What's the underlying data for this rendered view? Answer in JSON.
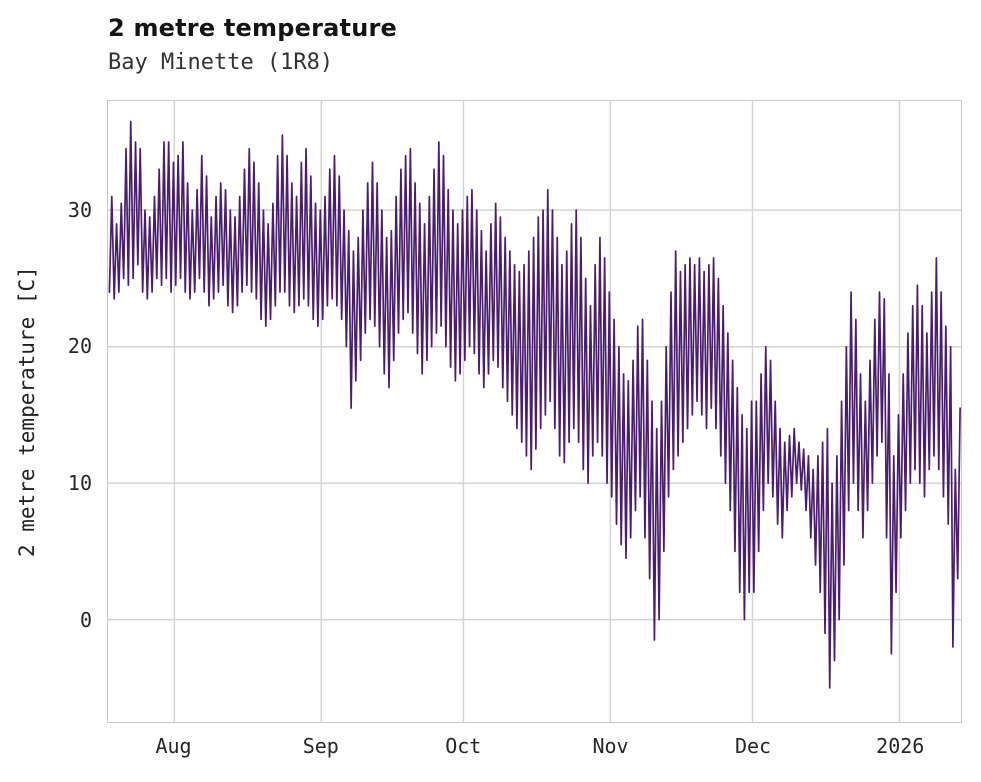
{
  "header": {
    "title": "2 metre temperature",
    "subtitle": "Bay Minette (1R8)"
  },
  "colors": {
    "line": "#4a1d6e",
    "grid": "#d4d4d4",
    "border": "#c9c9c9",
    "title_text": "#141414",
    "tick_text": "#262626"
  },
  "chart_data": {
    "type": "line",
    "title": "2 metre temperature",
    "subtitle": "Bay Minette (1R8)",
    "xlabel": "",
    "ylabel": "2 metre temperature [C]",
    "ylim": [
      -7.5,
      38
    ],
    "grid": true,
    "legend_position": "none",
    "x_domain_days": 180,
    "y_ticks": [
      0,
      10,
      20,
      30
    ],
    "x_ticks": [
      {
        "label": "Aug",
        "day": 14
      },
      {
        "label": "Sep",
        "day": 45
      },
      {
        "label": "Oct",
        "day": 75
      },
      {
        "label": "Nov",
        "day": 106
      },
      {
        "label": "Dec",
        "day": 136
      },
      {
        "label": "2026",
        "day": 167
      }
    ],
    "series": [
      {
        "name": "2 metre temperature",
        "color": "#4a1d6e",
        "encoding": "daily_min_max_estimated_from_plot",
        "daily_min_max": [
          [
            24,
            31
          ],
          [
            23.5,
            29
          ],
          [
            24,
            30.5
          ],
          [
            25,
            34.5
          ],
          [
            24.5,
            36.5
          ],
          [
            25,
            35
          ],
          [
            26,
            34.5
          ],
          [
            24,
            30
          ],
          [
            23.5,
            29.5
          ],
          [
            24,
            31
          ],
          [
            25,
            33
          ],
          [
            24.5,
            35
          ],
          [
            25,
            35
          ],
          [
            24,
            33.5
          ],
          [
            24.5,
            34
          ],
          [
            25,
            35
          ],
          [
            24,
            32
          ],
          [
            23.5,
            30
          ],
          [
            24,
            31.5
          ],
          [
            25,
            34
          ],
          [
            24,
            32.5
          ],
          [
            23,
            29.5
          ],
          [
            23.5,
            31
          ],
          [
            24,
            32
          ],
          [
            24.5,
            31.5
          ],
          [
            23,
            30
          ],
          [
            22.5,
            29.5
          ],
          [
            23,
            31
          ],
          [
            24,
            33
          ],
          [
            24.5,
            34.5
          ],
          [
            24,
            33.5
          ],
          [
            23.5,
            32
          ],
          [
            22,
            30
          ],
          [
            21.5,
            29
          ],
          [
            22,
            30.5
          ],
          [
            23,
            34
          ],
          [
            24,
            35.5
          ],
          [
            24,
            34
          ],
          [
            23,
            32
          ],
          [
            22.5,
            31
          ],
          [
            23,
            33.5
          ],
          [
            23.5,
            34.5
          ],
          [
            23,
            32.5
          ],
          [
            22,
            30.5
          ],
          [
            21.5,
            30
          ],
          [
            22,
            31
          ],
          [
            23,
            33
          ],
          [
            23.5,
            34
          ],
          [
            23,
            32.5
          ],
          [
            22,
            30
          ],
          [
            20,
            28.5
          ],
          [
            15.5,
            27
          ],
          [
            17.5,
            28
          ],
          [
            19,
            30
          ],
          [
            21,
            32
          ],
          [
            22,
            33.5
          ],
          [
            21.5,
            32
          ],
          [
            20,
            30
          ],
          [
            18,
            28
          ],
          [
            17,
            28.5
          ],
          [
            19,
            31
          ],
          [
            21,
            33
          ],
          [
            22,
            34
          ],
          [
            22.5,
            34.5
          ],
          [
            21,
            32
          ],
          [
            19.5,
            30.5
          ],
          [
            18,
            29
          ],
          [
            19,
            31
          ],
          [
            20,
            33
          ],
          [
            21,
            35
          ],
          [
            21.5,
            34
          ],
          [
            20,
            31.5
          ],
          [
            18.5,
            30
          ],
          [
            17.5,
            29
          ],
          [
            18,
            30
          ],
          [
            19,
            31
          ],
          [
            20,
            31.5
          ],
          [
            19.5,
            30
          ],
          [
            18,
            28.5
          ],
          [
            17,
            27
          ],
          [
            18,
            29
          ],
          [
            19,
            30.5
          ],
          [
            18.5,
            29.5
          ],
          [
            17,
            28
          ],
          [
            16,
            27
          ],
          [
            15,
            26
          ],
          [
            14,
            25.5
          ],
          [
            13,
            26
          ],
          [
            12,
            27
          ],
          [
            11,
            28
          ],
          [
            12.5,
            29.5
          ],
          [
            14,
            30
          ],
          [
            15,
            31.5
          ],
          [
            16,
            30
          ],
          [
            14,
            28
          ],
          [
            12,
            26
          ],
          [
            11.5,
            27
          ],
          [
            13,
            29
          ],
          [
            14,
            30
          ],
          [
            13,
            28
          ],
          [
            11,
            25
          ],
          [
            10,
            23
          ],
          [
            12,
            26
          ],
          [
            13,
            28
          ],
          [
            12,
            26.5
          ],
          [
            10,
            24
          ],
          [
            9,
            22
          ],
          [
            7,
            20
          ],
          [
            5.5,
            18
          ],
          [
            4.5,
            17.5
          ],
          [
            6,
            19
          ],
          [
            8,
            21.5
          ],
          [
            9,
            22
          ],
          [
            6,
            19
          ],
          [
            3,
            16
          ],
          [
            -1.5,
            14
          ],
          [
            0,
            16
          ],
          [
            5,
            20
          ],
          [
            9,
            24
          ],
          [
            11,
            27
          ],
          [
            12,
            25.5
          ],
          [
            13,
            26
          ],
          [
            14,
            26.5
          ],
          [
            15,
            26
          ],
          [
            16,
            26.5
          ],
          [
            15,
            25.5
          ],
          [
            14,
            26
          ],
          [
            15.5,
            26.5
          ],
          [
            14,
            25
          ],
          [
            12,
            23
          ],
          [
            10,
            21
          ],
          [
            8,
            19
          ],
          [
            5,
            17
          ],
          [
            2,
            15
          ],
          [
            0,
            14
          ],
          [
            2,
            16
          ],
          [
            2,
            16
          ],
          [
            5,
            18
          ],
          [
            8,
            20
          ],
          [
            10,
            19
          ],
          [
            9,
            16
          ],
          [
            7,
            14
          ],
          [
            6,
            13
          ],
          [
            8,
            13.5
          ],
          [
            9,
            14
          ],
          [
            10,
            13
          ],
          [
            9.5,
            12.5
          ],
          [
            8,
            12
          ],
          [
            6,
            11
          ],
          [
            4,
            12
          ],
          [
            2,
            13
          ],
          [
            -1,
            14
          ],
          [
            -5,
            10
          ],
          [
            -3,
            12
          ],
          [
            0,
            16
          ],
          [
            4,
            20
          ],
          [
            8,
            24
          ],
          [
            10,
            22
          ],
          [
            8,
            18
          ],
          [
            6,
            16
          ],
          [
            8,
            19
          ],
          [
            10,
            22
          ],
          [
            12,
            24
          ],
          [
            13,
            23.5
          ],
          [
            6,
            18
          ],
          [
            -2.5,
            12
          ],
          [
            2,
            15
          ],
          [
            6,
            18
          ],
          [
            8,
            21
          ],
          [
            10,
            23
          ],
          [
            11,
            24.5
          ],
          [
            10,
            23
          ],
          [
            9,
            21
          ],
          [
            11,
            24
          ],
          [
            12,
            26.5
          ],
          [
            11,
            24
          ],
          [
            9,
            21.5
          ],
          [
            7,
            20
          ],
          [
            -2,
            11
          ],
          [
            3,
            15.5
          ]
        ]
      }
    ]
  }
}
